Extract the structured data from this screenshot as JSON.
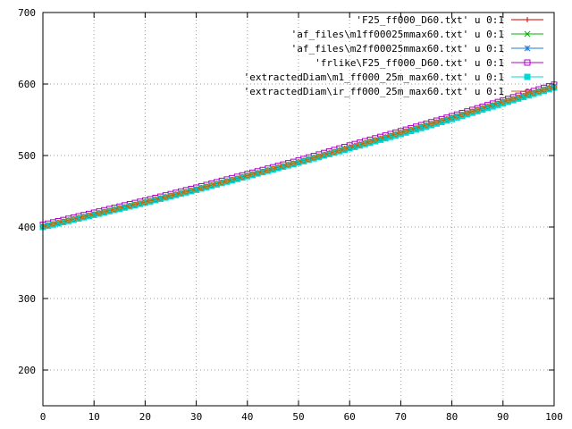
{
  "chart_data": {
    "type": "line",
    "title": "",
    "xlabel": "",
    "ylabel": "",
    "xlim": [
      0,
      100
    ],
    "ylim": [
      150,
      700
    ],
    "x_ticks": [
      0,
      10,
      20,
      30,
      40,
      50,
      60,
      70,
      80,
      90,
      100
    ],
    "y_ticks": [
      200,
      300,
      400,
      500,
      600,
      700
    ],
    "grid": true,
    "legend_position": "top-right",
    "x": [
      0,
      10,
      20,
      30,
      40,
      50,
      60,
      70,
      80,
      90,
      100
    ],
    "series": [
      {
        "name": "'F25_ff000_D60.txt' u 0:1",
        "color": "#cc0000",
        "marker": "plus",
        "values": [
          401,
          418,
          435,
          453,
          472,
          491,
          512,
          532,
          553,
          575,
          597
        ]
      },
      {
        "name": "'af_files\\m1ff00025mmax60.txt' u 0:1",
        "color": "#00b000",
        "marker": "cross",
        "values": [
          400,
          417,
          434,
          452,
          471,
          490,
          511,
          531,
          552,
          574,
          596
        ]
      },
      {
        "name": "'af_files\\m2ff00025mmax60.txt' u 0:1",
        "color": "#1f78d6",
        "marker": "star",
        "values": [
          401,
          418,
          435,
          453,
          472,
          491,
          511,
          532,
          553,
          575,
          597
        ]
      },
      {
        "name": "'frlike\\F25_ff000_D60.txt' u 0:1",
        "color": "#b000c8",
        "marker": "square",
        "values": [
          403,
          420,
          437,
          455,
          474,
          493,
          514,
          534,
          555,
          577,
          599
        ]
      },
      {
        "name": "'extractedDiam\\m1_ff000_25m_max60.txt' u 0:1",
        "color": "#00d8d8",
        "marker": "filled-square",
        "values": [
          400,
          417,
          434,
          452,
          471,
          490,
          510,
          530,
          551,
          573,
          595
        ]
      },
      {
        "name": "'extractedDiam\\ir_ff000_25m_max60.txt' u 0:1",
        "color": "#c86400",
        "marker": "circle",
        "values": [
          401,
          418,
          435,
          453,
          472,
          491,
          511,
          532,
          553,
          575,
          596
        ]
      }
    ]
  }
}
